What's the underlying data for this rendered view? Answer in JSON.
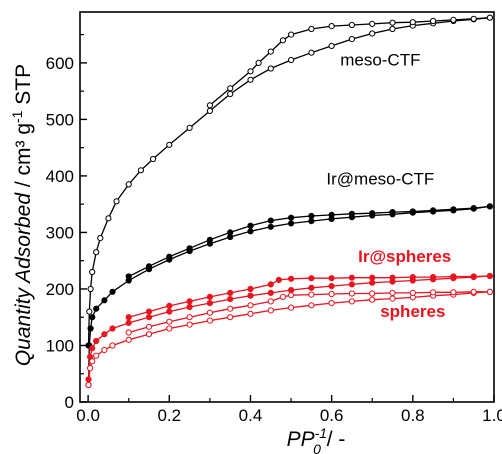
{
  "chart_data": {
    "type": "scatter",
    "xlabel": {
      "main": "PP",
      "sub": "0",
      "sup": "-1",
      "tail": " / -"
    },
    "ylabel": {
      "main": "Quantity Adsorbed",
      "tail": " / cm³ g",
      "sup": "-1",
      "end": " STP"
    },
    "xlim": [
      -0.02,
      1.0
    ],
    "ylim": [
      0,
      690
    ],
    "x_ticks": [
      0.0,
      0.2,
      0.4,
      0.6,
      0.8,
      1.0
    ],
    "x_tick_labels": [
      "0.0",
      "0.2",
      "0.4",
      "0.6",
      "0.8",
      "1.0"
    ],
    "y_ticks": [
      0,
      100,
      200,
      300,
      400,
      500,
      600
    ],
    "y_tick_labels": [
      "0",
      "100",
      "200",
      "300",
      "400",
      "500",
      "600"
    ],
    "grid": false,
    "series": [
      {
        "name": "meso-CTF",
        "color": "#000000",
        "marker": "open-circle",
        "adsorption": [
          [
            0.001,
            100
          ],
          [
            0.003,
            160
          ],
          [
            0.006,
            200
          ],
          [
            0.01,
            230
          ],
          [
            0.02,
            265
          ],
          [
            0.03,
            290
          ],
          [
            0.05,
            325
          ],
          [
            0.07,
            355
          ],
          [
            0.1,
            385
          ],
          [
            0.13,
            410
          ],
          [
            0.16,
            430
          ],
          [
            0.2,
            455
          ],
          [
            0.25,
            485
          ],
          [
            0.3,
            515
          ],
          [
            0.35,
            545
          ],
          [
            0.4,
            570
          ],
          [
            0.45,
            590
          ],
          [
            0.5,
            605
          ],
          [
            0.55,
            618
          ],
          [
            0.6,
            630
          ],
          [
            0.65,
            642
          ],
          [
            0.7,
            652
          ],
          [
            0.75,
            660
          ],
          [
            0.8,
            666
          ],
          [
            0.85,
            670
          ],
          [
            0.9,
            674
          ],
          [
            0.95,
            677
          ],
          [
            0.99,
            680
          ]
        ],
        "desorption": [
          [
            0.99,
            680
          ],
          [
            0.95,
            678
          ],
          [
            0.9,
            676
          ],
          [
            0.85,
            674
          ],
          [
            0.8,
            672
          ],
          [
            0.75,
            671
          ],
          [
            0.7,
            669
          ],
          [
            0.65,
            667
          ],
          [
            0.6,
            665
          ],
          [
            0.55,
            660
          ],
          [
            0.5,
            650
          ],
          [
            0.48,
            640
          ],
          [
            0.45,
            620
          ],
          [
            0.42,
            600
          ],
          [
            0.4,
            585
          ],
          [
            0.35,
            555
          ],
          [
            0.3,
            525
          ]
        ]
      },
      {
        "name": "Ir@meso-CTF",
        "color": "#000000",
        "marker": "filled-circle",
        "adsorption": [
          [
            0.001,
            30
          ],
          [
            0.003,
            100
          ],
          [
            0.006,
            130
          ],
          [
            0.01,
            150
          ],
          [
            0.02,
            165
          ],
          [
            0.04,
            180
          ],
          [
            0.06,
            195
          ],
          [
            0.1,
            215
          ],
          [
            0.15,
            235
          ],
          [
            0.2,
            252
          ],
          [
            0.25,
            267
          ],
          [
            0.3,
            280
          ],
          [
            0.35,
            292
          ],
          [
            0.4,
            302
          ],
          [
            0.45,
            310
          ],
          [
            0.5,
            316
          ],
          [
            0.55,
            320
          ],
          [
            0.6,
            324
          ],
          [
            0.65,
            327
          ],
          [
            0.7,
            330
          ],
          [
            0.75,
            332
          ],
          [
            0.8,
            335
          ],
          [
            0.85,
            337
          ],
          [
            0.9,
            339
          ],
          [
            0.95,
            342
          ],
          [
            0.99,
            346
          ]
        ],
        "desorption": [
          [
            0.99,
            346
          ],
          [
            0.95,
            343
          ],
          [
            0.9,
            341
          ],
          [
            0.85,
            339
          ],
          [
            0.8,
            337
          ],
          [
            0.75,
            336
          ],
          [
            0.7,
            334
          ],
          [
            0.65,
            333
          ],
          [
            0.6,
            331
          ],
          [
            0.55,
            329
          ],
          [
            0.5,
            326
          ],
          [
            0.45,
            321
          ],
          [
            0.4,
            312
          ],
          [
            0.35,
            300
          ],
          [
            0.3,
            287
          ],
          [
            0.25,
            272
          ],
          [
            0.2,
            257
          ],
          [
            0.15,
            240
          ],
          [
            0.1,
            222
          ]
        ]
      },
      {
        "name": "Ir@spheres",
        "color": "#e8141e",
        "marker": "filled-circle",
        "adsorption": [
          [
            0.001,
            40
          ],
          [
            0.005,
            80
          ],
          [
            0.01,
            95
          ],
          [
            0.02,
            108
          ],
          [
            0.04,
            120
          ],
          [
            0.06,
            130
          ],
          [
            0.1,
            140
          ],
          [
            0.15,
            150
          ],
          [
            0.2,
            160
          ],
          [
            0.25,
            168
          ],
          [
            0.3,
            175
          ],
          [
            0.35,
            182
          ],
          [
            0.4,
            188
          ],
          [
            0.45,
            193
          ],
          [
            0.5,
            198
          ],
          [
            0.55,
            202
          ],
          [
            0.6,
            205
          ],
          [
            0.65,
            208
          ],
          [
            0.7,
            211
          ],
          [
            0.75,
            213
          ],
          [
            0.8,
            215
          ],
          [
            0.85,
            217
          ],
          [
            0.9,
            219
          ],
          [
            0.95,
            221
          ],
          [
            0.99,
            223
          ]
        ],
        "desorption": [
          [
            0.99,
            223
          ],
          [
            0.95,
            222
          ],
          [
            0.9,
            222
          ],
          [
            0.85,
            221
          ],
          [
            0.8,
            221
          ],
          [
            0.75,
            220
          ],
          [
            0.7,
            220
          ],
          [
            0.65,
            220
          ],
          [
            0.6,
            219
          ],
          [
            0.55,
            219
          ],
          [
            0.5,
            218
          ],
          [
            0.47,
            216
          ],
          [
            0.45,
            208
          ],
          [
            0.4,
            200
          ],
          [
            0.35,
            193
          ],
          [
            0.3,
            186
          ],
          [
            0.25,
            178
          ],
          [
            0.2,
            170
          ],
          [
            0.15,
            160
          ],
          [
            0.1,
            150
          ]
        ]
      },
      {
        "name": "spheres",
        "color": "#e8141e",
        "marker": "open-circle",
        "adsorption": [
          [
            0.001,
            30
          ],
          [
            0.005,
            60
          ],
          [
            0.01,
            72
          ],
          [
            0.02,
            82
          ],
          [
            0.04,
            92
          ],
          [
            0.06,
            100
          ],
          [
            0.1,
            110
          ],
          [
            0.15,
            120
          ],
          [
            0.2,
            130
          ],
          [
            0.25,
            137
          ],
          [
            0.3,
            144
          ],
          [
            0.35,
            150
          ],
          [
            0.4,
            156
          ],
          [
            0.45,
            162
          ],
          [
            0.5,
            167
          ],
          [
            0.55,
            171
          ],
          [
            0.6,
            175
          ],
          [
            0.65,
            178
          ],
          [
            0.7,
            181
          ],
          [
            0.75,
            183
          ],
          [
            0.8,
            185
          ],
          [
            0.85,
            188
          ],
          [
            0.9,
            190
          ],
          [
            0.95,
            193
          ],
          [
            0.99,
            195
          ]
        ],
        "desorption": [
          [
            0.99,
            195
          ],
          [
            0.95,
            195
          ],
          [
            0.9,
            194
          ],
          [
            0.85,
            194
          ],
          [
            0.8,
            193
          ],
          [
            0.75,
            193
          ],
          [
            0.7,
            192
          ],
          [
            0.65,
            192
          ],
          [
            0.6,
            191
          ],
          [
            0.55,
            190
          ],
          [
            0.5,
            189
          ],
          [
            0.48,
            186
          ],
          [
            0.45,
            178
          ],
          [
            0.4,
            171
          ],
          [
            0.35,
            165
          ],
          [
            0.3,
            158
          ],
          [
            0.25,
            150
          ],
          [
            0.2,
            142
          ],
          [
            0.15,
            133
          ],
          [
            0.1,
            123
          ]
        ]
      }
    ],
    "annotations": [
      {
        "text": "meso-CTF",
        "series": "meso-CTF",
        "x": 0.72,
        "y": 595,
        "color": "#000000",
        "bold": false
      },
      {
        "text": "Ir@meso-CTF",
        "series": "Ir@meso-CTF",
        "x": 0.72,
        "y": 385,
        "color": "#000000",
        "bold": false
      },
      {
        "text": "Ir@spheres",
        "series": "Ir@spheres",
        "x": 0.78,
        "y": 248,
        "color": "#e8141e",
        "bold": true
      },
      {
        "text": "spheres",
        "series": "spheres",
        "x": 0.8,
        "y": 150,
        "color": "#e8141e",
        "bold": true
      }
    ]
  }
}
